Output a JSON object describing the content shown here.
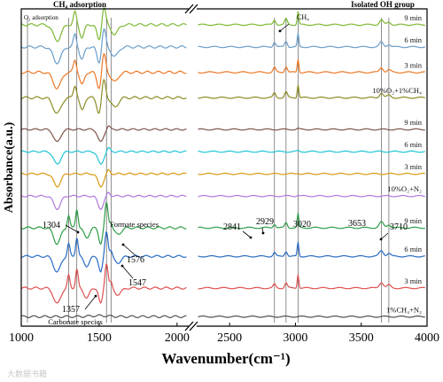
{
  "chart_data": {
    "type": "line",
    "xlabel": "Wavenumber(cm⁻¹)",
    "ylabel": "Absorbance(a.u.)",
    "x_axis_break": [
      2075,
      2250
    ],
    "xlim_left": [
      1000,
      2075
    ],
    "xlim_right": [
      2250,
      4000
    ],
    "x_ticks": [
      1000,
      1500,
      2000,
      2500,
      3000,
      3500,
      4000
    ],
    "y_ticks_shown": false,
    "section_headers": {
      "left": "CH₄ adsorption",
      "right": "Isolated OH group"
    },
    "series": [
      {
        "label": "9 min",
        "color": "#7cb832",
        "offset": 95
      },
      {
        "label": "6 min",
        "color": "#6a9ecb",
        "offset": 88
      },
      {
        "label": "3 min",
        "color": "#ee7826",
        "offset": 80
      },
      {
        "label": "10%O₂+1%CH₄",
        "color": "#8c8c24",
        "offset": 72
      },
      {
        "label": "9 min",
        "color": "#7f5448",
        "offset": 62
      },
      {
        "label": "6 min",
        "color": "#20c4d2",
        "offset": 55
      },
      {
        "label": "3 min",
        "color": "#d99a12",
        "offset": 48
      },
      {
        "label": "10%O₂+N₂",
        "color": "#b078dc",
        "offset": 41
      },
      {
        "label": "9 min",
        "color": "#2e9e48",
        "offset": 31
      },
      {
        "label": "6 min",
        "color": "#2a6cc4",
        "offset": 22
      },
      {
        "label": "3 min",
        "color": "#e05050",
        "offset": 12
      },
      {
        "label": "1%CH₄+N₂",
        "color": "#505050",
        "offset": 3
      }
    ],
    "vertical_reference_lines": [
      1040,
      1304,
      1357,
      1547,
      1576,
      2841,
      2929,
      3020,
      3653,
      3710
    ],
    "annotations": [
      {
        "text": "O₂ adsorption",
        "x": 1040
      },
      {
        "text": "CH₄",
        "x": 3020
      },
      {
        "text": "1304",
        "x": 1304
      },
      {
        "text": "1357",
        "x": 1357
      },
      {
        "text": "1547",
        "x": 1547
      },
      {
        "text": "1576",
        "x": 1576
      },
      {
        "text": "Formate species",
        "x": 1576
      },
      {
        "text": "Carbonate species",
        "x": 1357
      },
      {
        "text": "2841",
        "x": 2841
      },
      {
        "text": "2929",
        "x": 2929
      },
      {
        "text": "3020",
        "x": 3020
      },
      {
        "text": "3653",
        "x": 3653
      },
      {
        "text": "3710",
        "x": 3710
      }
    ],
    "watermark": "大数据书籍"
  }
}
